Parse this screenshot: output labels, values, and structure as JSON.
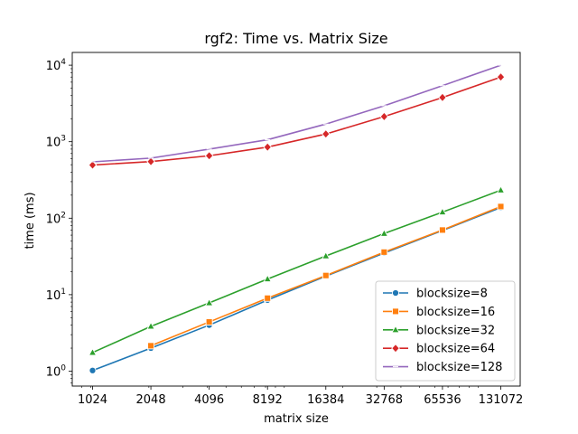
{
  "chart_data": {
    "type": "line",
    "title": "rgf2: Time vs. Matrix Size",
    "xlabel": "matrix size",
    "ylabel": "time (ms)",
    "x_scale": "log2",
    "y_scale": "log10",
    "x": [
      1024,
      2048,
      4096,
      8192,
      16384,
      32768,
      65536,
      131072
    ],
    "x_tick_labels": [
      "1024",
      "2048",
      "4096",
      "8192",
      "16384",
      "32768",
      "65536",
      "131072"
    ],
    "y_ticks": [
      {
        "base": "10",
        "exp": "0",
        "value": 1
      },
      {
        "base": "10",
        "exp": "1",
        "value": 10
      },
      {
        "base": "10",
        "exp": "2",
        "value": 100
      },
      {
        "base": "10",
        "exp": "3",
        "value": 1000
      },
      {
        "base": "10",
        "exp": "4",
        "value": 10000
      }
    ],
    "series": [
      {
        "name": "blocksize=8",
        "color": "#1f77b4",
        "marker": "circle",
        "values": [
          1.02,
          2.0,
          4.0,
          8.5,
          17.5,
          35,
          69,
          138
        ]
      },
      {
        "name": "blocksize=16",
        "color": "#ff7f0e",
        "marker": "square",
        "values": [
          null,
          2.15,
          4.4,
          9.0,
          17.8,
          36,
          70,
          142
        ]
      },
      {
        "name": "blocksize=32",
        "color": "#2ca02c",
        "marker": "triangle",
        "values": [
          1.75,
          3.85,
          7.8,
          16,
          32,
          63,
          120,
          232
        ]
      },
      {
        "name": "blocksize=64",
        "color": "#d62728",
        "marker": "diamond",
        "values": [
          495,
          550,
          655,
          850,
          1260,
          2130,
          3780,
          7000
        ]
      },
      {
        "name": "blocksize=128",
        "color": "#9467bd",
        "marker": "none",
        "values": [
          545,
          610,
          800,
          1060,
          1700,
          2950,
          5400,
          10000
        ]
      }
    ],
    "legend_position": "lower-right",
    "grid": false
  }
}
